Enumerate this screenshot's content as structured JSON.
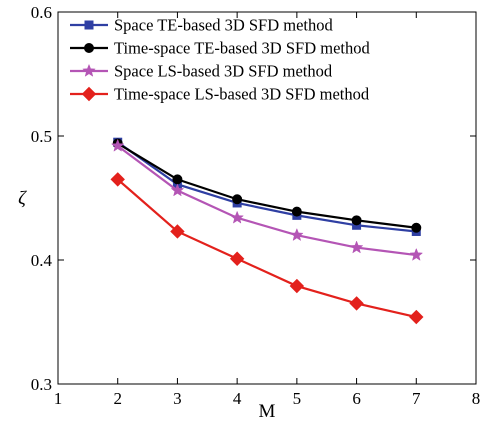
{
  "chart_data": {
    "type": "line",
    "xlabel": "M",
    "ylabel": "ζ",
    "xlim": [
      1,
      8
    ],
    "ylim": [
      0.3,
      0.6
    ],
    "xticks": [
      1,
      2,
      3,
      4,
      5,
      6,
      7,
      8
    ],
    "yticks": [
      0.3,
      0.4,
      0.5,
      0.6
    ],
    "xtick_labels": [
      "1",
      "2",
      "3",
      "4",
      "5",
      "6",
      "7",
      "8"
    ],
    "ytick_labels": [
      "0.3",
      "0.4",
      "0.5",
      "0.6"
    ],
    "grid": false,
    "legend_position": "top-right",
    "x": [
      2,
      3,
      4,
      5,
      6,
      7
    ],
    "series": [
      {
        "name": "Space TE-based 3D SFD method",
        "color": "#2f3fa3",
        "marker": "square",
        "values": [
          0.495,
          0.461,
          0.446,
          0.436,
          0.428,
          0.423
        ]
      },
      {
        "name": "Time-space TE-based 3D SFD method",
        "color": "#000000",
        "marker": "circle",
        "values": [
          0.494,
          0.465,
          0.449,
          0.439,
          0.432,
          0.426
        ]
      },
      {
        "name": "Space LS-based 3D SFD method",
        "color": "#b455b5",
        "marker": "star",
        "values": [
          0.492,
          0.456,
          0.434,
          0.42,
          0.41,
          0.404
        ]
      },
      {
        "name": "Time-space LS-based 3D SFD method",
        "color": "#e3211c",
        "marker": "diamond",
        "values": [
          0.465,
          0.423,
          0.401,
          0.379,
          0.365,
          0.354
        ]
      }
    ]
  }
}
